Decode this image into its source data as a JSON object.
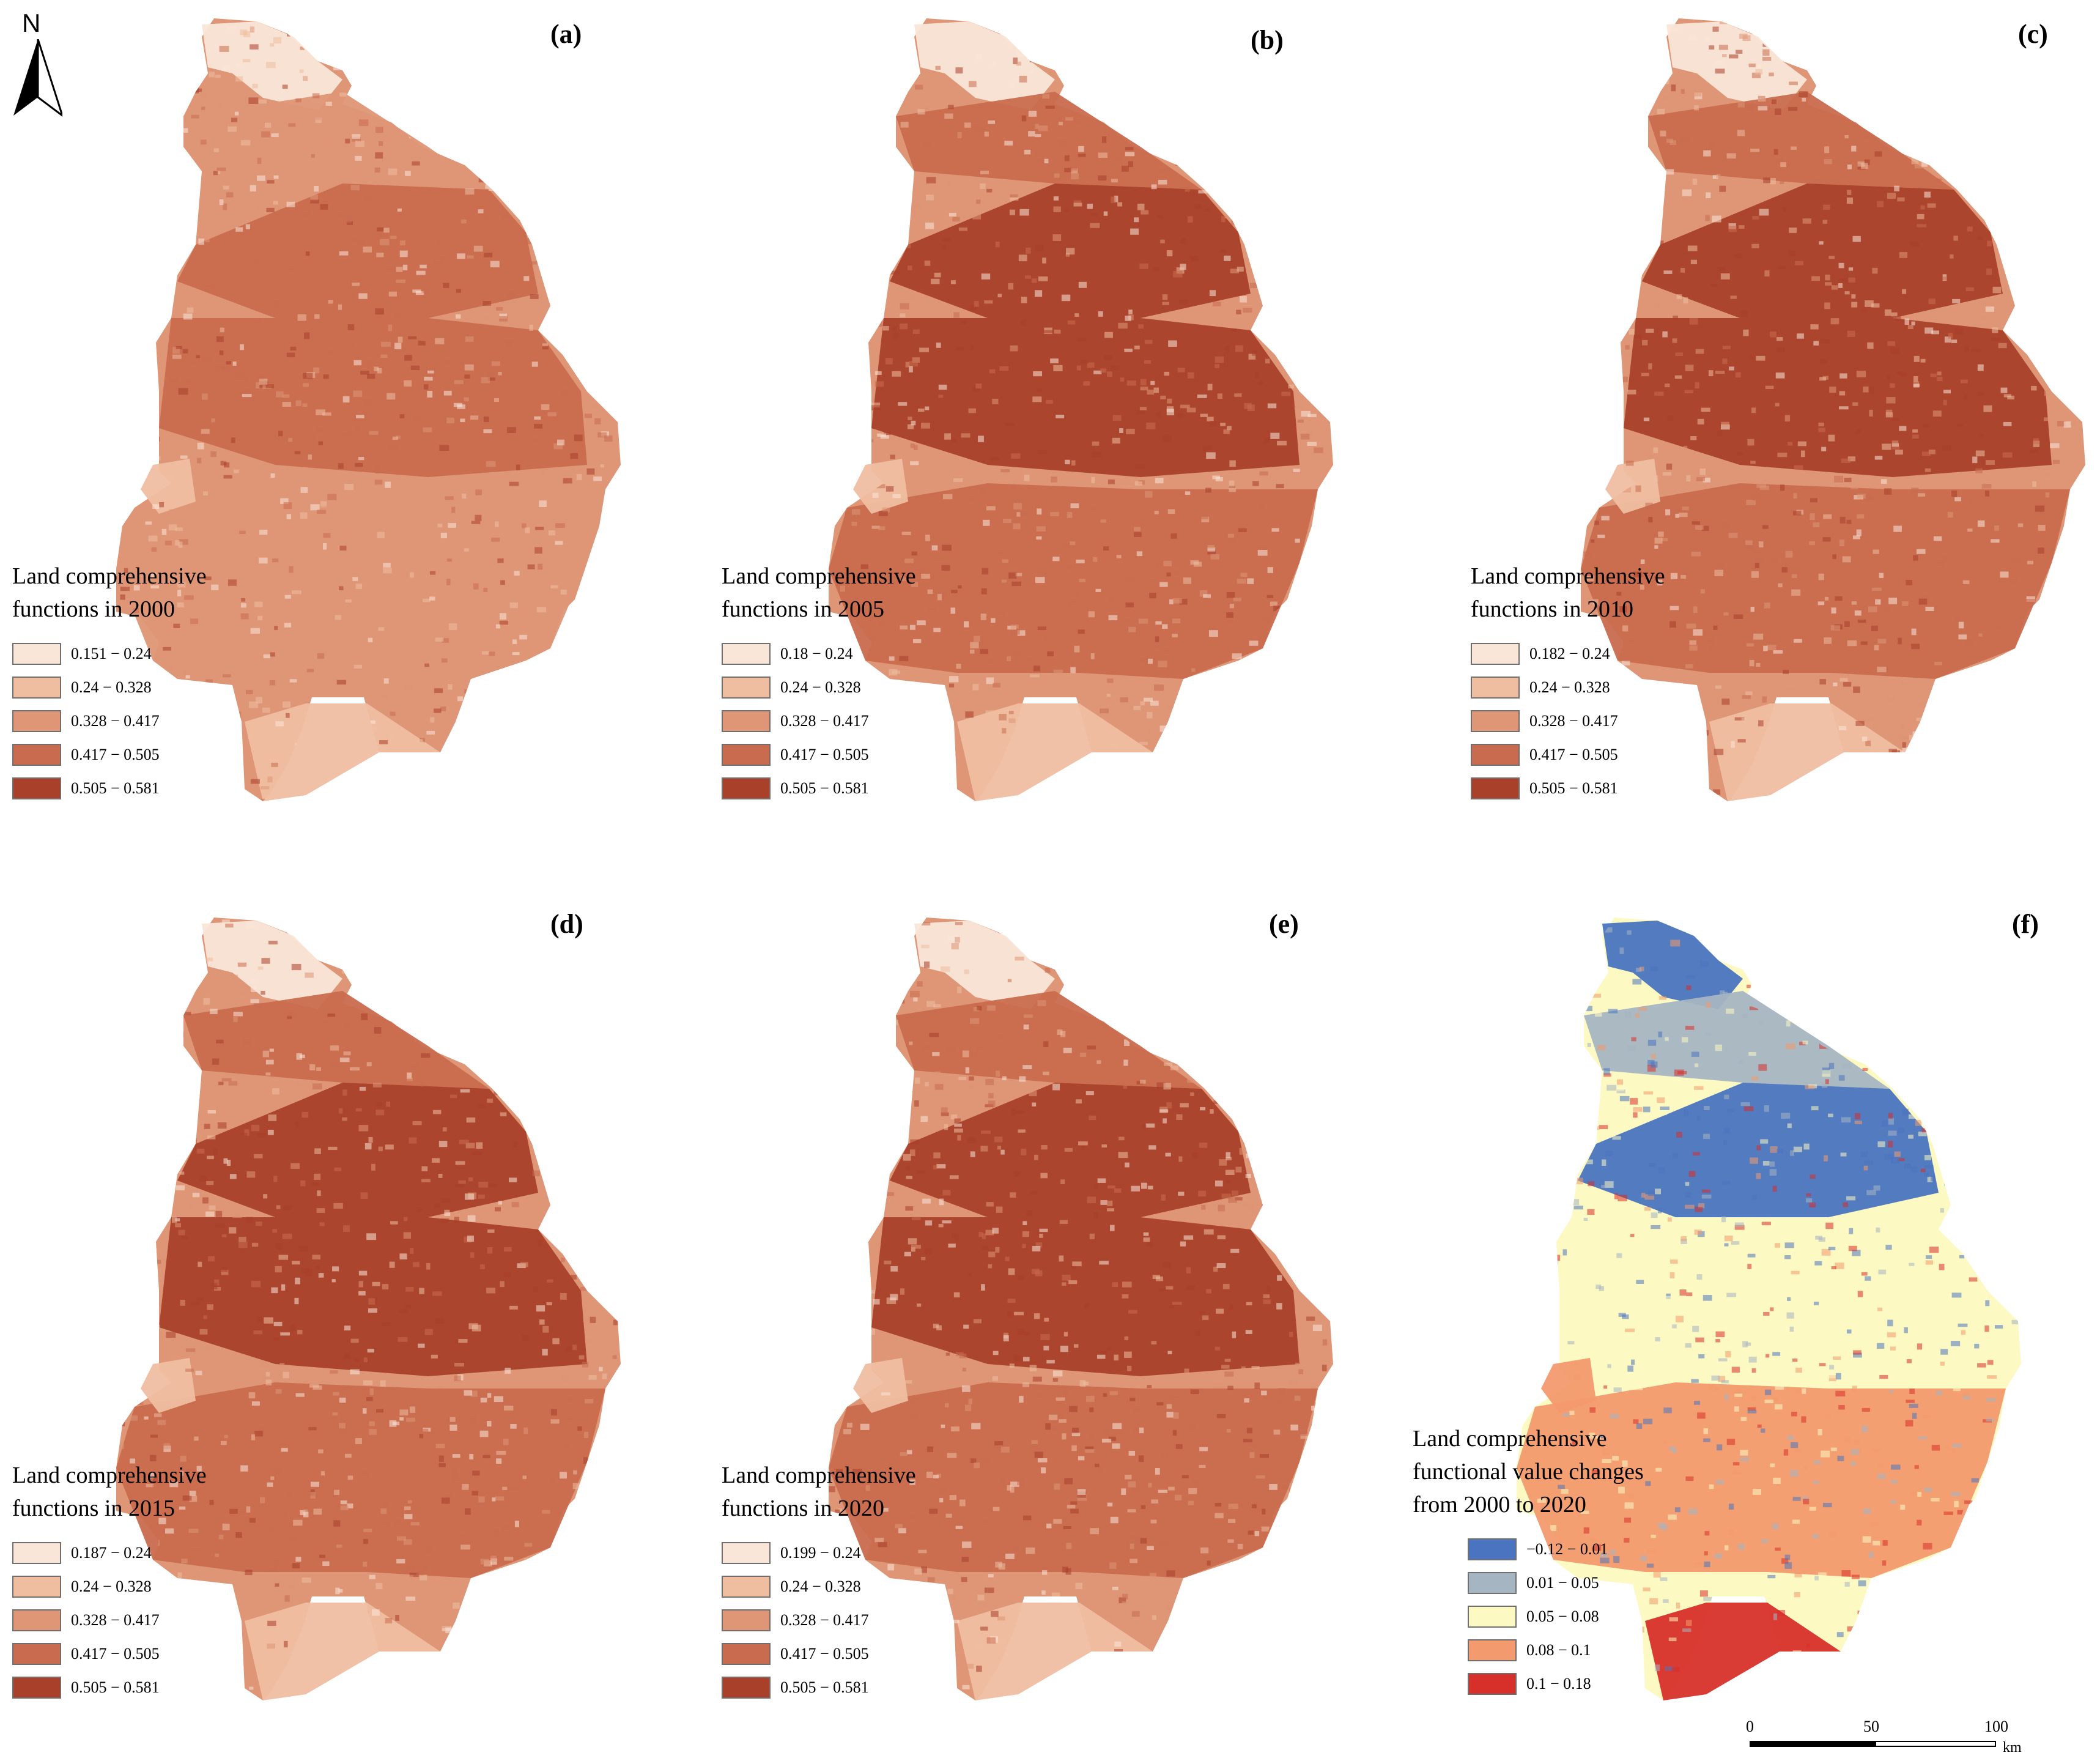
{
  "north_arrow": {
    "letter": "N"
  },
  "panels": [
    {
      "id": "a",
      "label": "(a)",
      "legend": {
        "title_lines": [
          "Land comprehensive",
          "functions in 2000"
        ],
        "items": [
          {
            "range": "0.151 − 0.24",
            "color": "#f9e6d8"
          },
          {
            "range": "0.24 − 0.328",
            "color": "#efbea1"
          },
          {
            "range": "0.328 − 0.417",
            "color": "#de9676"
          },
          {
            "range": "0.417 − 0.505",
            "color": "#c96b4e"
          },
          {
            "range": "0.505 − 0.581",
            "color": "#a9402a"
          }
        ]
      }
    },
    {
      "id": "b",
      "label": "(b)",
      "legend": {
        "title_lines": [
          "Land comprehensive",
          "functions in 2005"
        ],
        "items": [
          {
            "range": "0.18 − 0.24",
            "color": "#f9e6d8"
          },
          {
            "range": "0.24 − 0.328",
            "color": "#efbea1"
          },
          {
            "range": "0.328 − 0.417",
            "color": "#de9676"
          },
          {
            "range": "0.417 − 0.505",
            "color": "#c96b4e"
          },
          {
            "range": "0.505 − 0.581",
            "color": "#a9402a"
          }
        ]
      }
    },
    {
      "id": "c",
      "label": "(c)",
      "legend": {
        "title_lines": [
          "Land comprehensive",
          "functions in 2010"
        ],
        "items": [
          {
            "range": "0.182 − 0.24",
            "color": "#f9e6d8"
          },
          {
            "range": "0.24 − 0.328",
            "color": "#efbea1"
          },
          {
            "range": "0.328 − 0.417",
            "color": "#de9676"
          },
          {
            "range": "0.417 − 0.505",
            "color": "#c96b4e"
          },
          {
            "range": "0.505 − 0.581",
            "color": "#a9402a"
          }
        ]
      }
    },
    {
      "id": "d",
      "label": "(d)",
      "legend": {
        "title_lines": [
          "Land comprehensive",
          "functions in 2015"
        ],
        "items": [
          {
            "range": "0.187 − 0.24",
            "color": "#f9e6d8"
          },
          {
            "range": "0.24 − 0.328",
            "color": "#efbea1"
          },
          {
            "range": "0.328 − 0.417",
            "color": "#de9676"
          },
          {
            "range": "0.417 − 0.505",
            "color": "#c96b4e"
          },
          {
            "range": "0.505 − 0.581",
            "color": "#a9402a"
          }
        ]
      }
    },
    {
      "id": "e",
      "label": "(e)",
      "legend": {
        "title_lines": [
          "Land comprehensive",
          "functions in 2020"
        ],
        "items": [
          {
            "range": "0.199 − 0.24",
            "color": "#f9e6d8"
          },
          {
            "range": "0.24 − 0.328",
            "color": "#efbea1"
          },
          {
            "range": "0.328 − 0.417",
            "color": "#de9676"
          },
          {
            "range": "0.417 − 0.505",
            "color": "#c96b4e"
          },
          {
            "range": "0.505 − 0.581",
            "color": "#a9402a"
          }
        ]
      }
    },
    {
      "id": "f",
      "label": "(f)",
      "legend": {
        "title_lines": [
          "Land comprehensive",
          "functional value changes",
          "from 2000 to 2020"
        ],
        "items": [
          {
            "range": "−0.12 − 0.01",
            "color": "#4a74c0"
          },
          {
            "range": "0.01 − 0.05",
            "color": "#a6b5c2"
          },
          {
            "range": "0.05 − 0.08",
            "color": "#fdf9c3"
          },
          {
            "range": "0.08 − 0.1",
            "color": "#f39a6e"
          },
          {
            "range": "0.1 − 0.18",
            "color": "#d7302a"
          }
        ]
      }
    }
  ],
  "scale_bar": {
    "ticks": [
      "0",
      "50",
      "100"
    ],
    "unit": "km"
  }
}
